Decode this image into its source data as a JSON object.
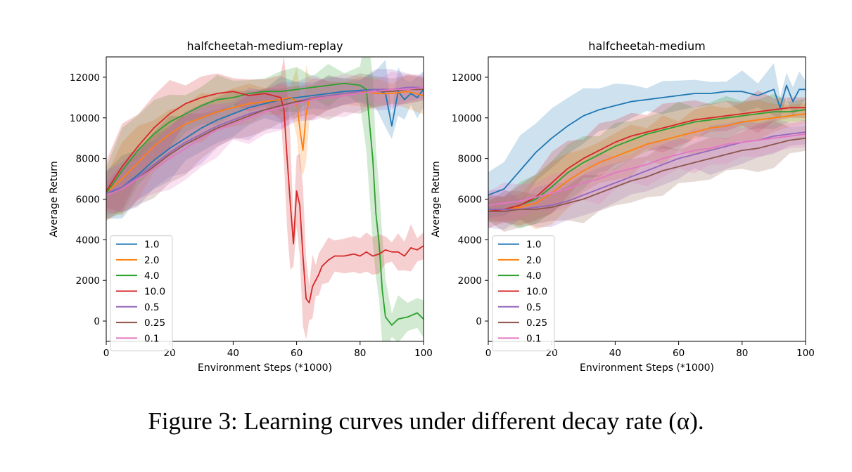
{
  "caption": "Figure 3: Learning curves under different decay rate (α).",
  "chart_data": [
    {
      "type": "line",
      "title": "halfcheetah-medium-replay",
      "xlabel": "Environment Steps (*1000)",
      "ylabel": "Average Return",
      "xlim": [
        0,
        100
      ],
      "ylim": [
        -1000,
        13000
      ],
      "xticks": [
        0,
        20,
        40,
        60,
        80,
        100
      ],
      "yticks": [
        0,
        2000,
        4000,
        6000,
        8000,
        10000,
        12000
      ],
      "grid": false,
      "legend_position": "lower-left",
      "series": [
        {
          "name": "1.0",
          "color": "#1f77b4",
          "x": [
            0,
            5,
            10,
            15,
            20,
            25,
            30,
            35,
            40,
            45,
            50,
            55,
            60,
            65,
            70,
            75,
            80,
            85,
            88,
            90,
            92,
            94,
            96,
            98,
            100
          ],
          "y": [
            6200,
            6600,
            7200,
            7900,
            8500,
            9000,
            9500,
            9900,
            10200,
            10500,
            10700,
            10900,
            11000,
            11100,
            11200,
            11300,
            11350,
            11400,
            11200,
            9600,
            11300,
            10900,
            11200,
            11000,
            11400
          ]
        },
        {
          "name": "2.0",
          "color": "#ff7f0e",
          "x": [
            0,
            5,
            10,
            15,
            20,
            25,
            30,
            35,
            40,
            45,
            50,
            55,
            58,
            60,
            61,
            62,
            63,
            64,
            66,
            70,
            75,
            80,
            85,
            90,
            95,
            100
          ],
          "y": [
            6300,
            7000,
            7800,
            8600,
            9200,
            9700,
            10000,
            10300,
            10500,
            10700,
            10800,
            10900,
            11000,
            10800,
            9500,
            8400,
            10200,
            10900,
            11000,
            11100,
            11200,
            11300,
            11200,
            11200,
            11300,
            11100
          ]
        },
        {
          "name": "4.0",
          "color": "#2ca02c",
          "x": [
            0,
            5,
            10,
            15,
            20,
            25,
            30,
            35,
            40,
            45,
            50,
            55,
            60,
            65,
            70,
            75,
            80,
            82,
            84,
            85,
            86,
            87,
            88,
            90,
            92,
            95,
            98,
            100
          ],
          "y": [
            6300,
            7400,
            8400,
            9200,
            9800,
            10200,
            10600,
            10900,
            11000,
            11200,
            11300,
            11300,
            11400,
            11500,
            11600,
            11700,
            11600,
            11400,
            8000,
            5300,
            3800,
            1500,
            200,
            -200,
            100,
            200,
            400,
            100
          ]
        },
        {
          "name": "10.0",
          "color": "#d62728",
          "x": [
            0,
            5,
            10,
            15,
            20,
            25,
            30,
            35,
            40,
            45,
            50,
            55,
            56,
            57,
            58,
            59,
            60,
            61,
            62,
            63,
            64,
            65,
            66,
            67,
            68,
            70,
            72,
            75,
            78,
            80,
            82,
            84,
            86,
            88,
            90,
            92,
            94,
            96,
            98,
            100
          ],
          "y": [
            6400,
            7600,
            8600,
            9500,
            10200,
            10700,
            11000,
            11200,
            11300,
            11100,
            11200,
            11000,
            10400,
            8000,
            5800,
            3800,
            6400,
            5700,
            3200,
            1100,
            900,
            1700,
            2000,
            2300,
            2700,
            3000,
            3200,
            3200,
            3300,
            3200,
            3400,
            3200,
            3300,
            3500,
            3400,
            3400,
            3200,
            3600,
            3500,
            3700
          ]
        },
        {
          "name": "0.5",
          "color": "#9467bd",
          "x": [
            0,
            5,
            10,
            15,
            20,
            25,
            30,
            35,
            40,
            45,
            50,
            55,
            60,
            65,
            70,
            75,
            80,
            85,
            90,
            95,
            100
          ],
          "y": [
            6300,
            6600,
            7100,
            7700,
            8300,
            8800,
            9200,
            9600,
            9900,
            10200,
            10400,
            10600,
            10800,
            11000,
            11100,
            11200,
            11300,
            11400,
            11400,
            11500,
            11500
          ]
        },
        {
          "name": "0.25",
          "color": "#8c564b",
          "x": [
            0,
            5,
            10,
            15,
            20,
            25,
            30,
            35,
            40,
            45,
            50,
            55,
            60,
            65,
            70,
            75,
            80,
            85,
            90,
            95,
            100
          ],
          "y": [
            6200,
            6500,
            7000,
            7600,
            8200,
            8700,
            9100,
            9500,
            9800,
            10100,
            10400,
            10600,
            10800,
            10900,
            11000,
            11100,
            11200,
            11300,
            11300,
            11400,
            11400
          ]
        },
        {
          "name": "0.1",
          "color": "#e377c2",
          "x": [
            0,
            5,
            10,
            15,
            20,
            25,
            30,
            35,
            40,
            45,
            50,
            55,
            60,
            65,
            70,
            75,
            80,
            85,
            90,
            95,
            100
          ],
          "y": [
            6200,
            6500,
            7000,
            7500,
            8000,
            8500,
            9000,
            9400,
            9700,
            10000,
            10300,
            10500,
            10700,
            10900,
            11000,
            11100,
            11200,
            11300,
            11400,
            11400,
            11500
          ]
        }
      ]
    },
    {
      "type": "line",
      "title": "halfcheetah-medium",
      "xlabel": "Environment Steps (*1000)",
      "ylabel": "Average Return",
      "xlim": [
        0,
        100
      ],
      "ylim": [
        -1000,
        13000
      ],
      "xticks": [
        0,
        20,
        40,
        60,
        80,
        100
      ],
      "yticks": [
        0,
        2000,
        4000,
        6000,
        8000,
        10000,
        12000
      ],
      "grid": false,
      "legend_position": "lower-left",
      "series": [
        {
          "name": "1.0",
          "color": "#1f77b4",
          "x": [
            0,
            5,
            10,
            15,
            20,
            25,
            30,
            35,
            40,
            45,
            50,
            55,
            60,
            65,
            70,
            75,
            80,
            85,
            90,
            92,
            94,
            96,
            98,
            100
          ],
          "y": [
            6200,
            6500,
            7400,
            8300,
            9000,
            9600,
            10100,
            10400,
            10600,
            10800,
            10900,
            11000,
            11100,
            11200,
            11200,
            11300,
            11300,
            11100,
            11400,
            10500,
            11600,
            10800,
            11400,
            11400
          ]
        },
        {
          "name": "2.0",
          "color": "#ff7f0e",
          "x": [
            0,
            5,
            10,
            15,
            20,
            25,
            30,
            35,
            40,
            45,
            50,
            55,
            60,
            65,
            70,
            75,
            80,
            85,
            90,
            95,
            100
          ],
          "y": [
            5500,
            5500,
            5600,
            5800,
            6300,
            6900,
            7400,
            7800,
            8100,
            8400,
            8700,
            8900,
            9100,
            9300,
            9500,
            9600,
            9800,
            9900,
            10000,
            10100,
            10200
          ]
        },
        {
          "name": "4.0",
          "color": "#2ca02c",
          "x": [
            0,
            5,
            10,
            15,
            20,
            25,
            30,
            35,
            40,
            45,
            50,
            55,
            60,
            65,
            70,
            75,
            80,
            85,
            90,
            95,
            100
          ],
          "y": [
            5500,
            5500,
            5700,
            6000,
            6600,
            7300,
            7800,
            8200,
            8600,
            8900,
            9200,
            9400,
            9600,
            9800,
            9900,
            10000,
            10100,
            10200,
            10300,
            10300,
            10400
          ]
        },
        {
          "name": "10.0",
          "color": "#d62728",
          "x": [
            0,
            5,
            10,
            15,
            20,
            25,
            30,
            35,
            40,
            45,
            50,
            55,
            60,
            65,
            70,
            75,
            80,
            85,
            90,
            95,
            100
          ],
          "y": [
            5400,
            5500,
            5700,
            6100,
            6800,
            7500,
            8000,
            8400,
            8800,
            9100,
            9300,
            9500,
            9700,
            9900,
            10000,
            10100,
            10200,
            10300,
            10400,
            10500,
            10500
          ]
        },
        {
          "name": "0.5",
          "color": "#9467bd",
          "x": [
            0,
            5,
            10,
            15,
            20,
            25,
            30,
            35,
            40,
            45,
            50,
            55,
            60,
            65,
            70,
            75,
            80,
            85,
            90,
            95,
            100
          ],
          "y": [
            5500,
            5500,
            5500,
            5600,
            5700,
            5900,
            6200,
            6500,
            6800,
            7100,
            7400,
            7700,
            8000,
            8200,
            8400,
            8600,
            8800,
            8900,
            9100,
            9200,
            9300
          ]
        },
        {
          "name": "0.25",
          "color": "#8c564b",
          "x": [
            0,
            5,
            10,
            15,
            20,
            25,
            30,
            35,
            40,
            45,
            50,
            55,
            60,
            65,
            70,
            75,
            80,
            85,
            90,
            95,
            100
          ],
          "y": [
            5400,
            5400,
            5500,
            5500,
            5600,
            5800,
            6000,
            6300,
            6600,
            6900,
            7100,
            7400,
            7600,
            7800,
            8000,
            8200,
            8400,
            8500,
            8700,
            8900,
            9000
          ]
        },
        {
          "name": "0.1",
          "color": "#e377c2",
          "x": [
            0,
            5,
            10,
            15,
            20,
            25,
            30,
            35,
            40,
            45,
            50,
            55,
            60,
            65,
            70,
            75,
            80,
            85,
            90,
            95,
            100
          ],
          "y": [
            5700,
            5800,
            5900,
            6100,
            6300,
            6500,
            6800,
            7000,
            7300,
            7500,
            7700,
            8000,
            8200,
            8400,
            8500,
            8700,
            8800,
            8900,
            9000,
            9100,
            9200
          ]
        }
      ]
    }
  ]
}
